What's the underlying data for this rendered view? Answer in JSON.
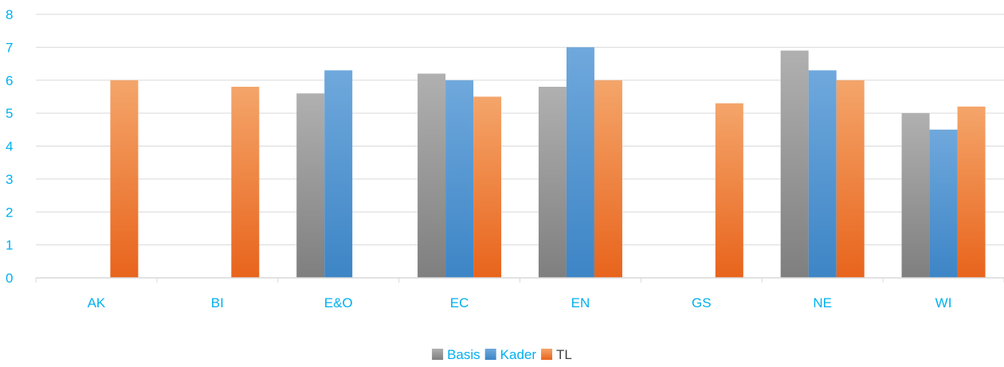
{
  "chart_data": {
    "type": "bar",
    "categories": [
      "AK",
      "BI",
      "E&O",
      "EC",
      "EN",
      "GS",
      "NE",
      "WI"
    ],
    "series": [
      {
        "name": "Basis",
        "values": [
          null,
          null,
          5.6,
          6.2,
          5.8,
          null,
          6.9,
          5.0
        ],
        "color_top": "#b0b0b0",
        "color_bottom": "#7f7f7f"
      },
      {
        "name": "Kader",
        "values": [
          null,
          null,
          6.3,
          6.0,
          7.0,
          null,
          6.3,
          4.5
        ],
        "color_top": "#6fa8dc",
        "color_bottom": "#3d85c6"
      },
      {
        "name": "TL",
        "values": [
          6.0,
          5.8,
          null,
          5.5,
          6.0,
          5.3,
          6.0,
          5.2
        ],
        "color_top": "#f4a56a",
        "color_bottom": "#e8641c"
      }
    ],
    "ylim": [
      0,
      8
    ],
    "yticks": [
      "0",
      "1",
      "2",
      "3",
      "4",
      "5",
      "6",
      "7",
      "8"
    ],
    "grid": true,
    "legend_position": "bottom-center",
    "title": "",
    "xlabel": "",
    "ylabel": ""
  }
}
